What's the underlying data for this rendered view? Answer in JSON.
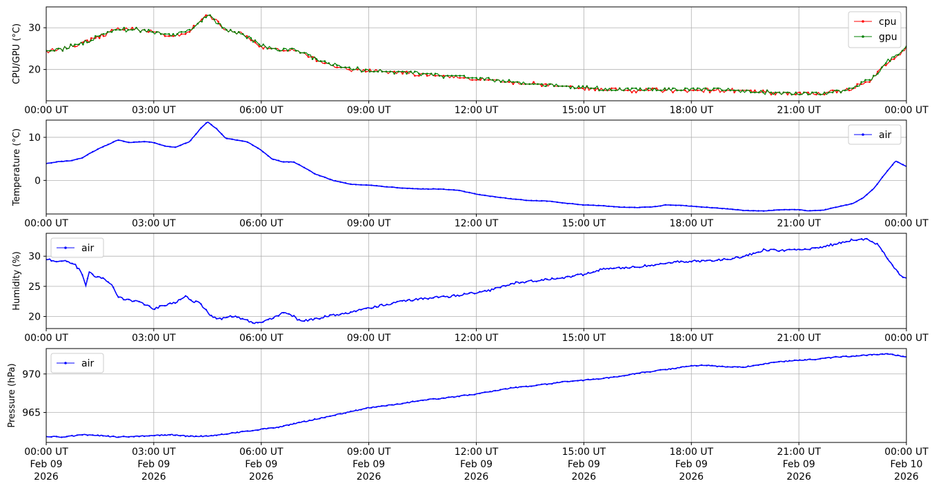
{
  "colors": {
    "cpu": "#ff0000",
    "gpu": "#008000",
    "air": "#0000ff",
    "grid": "#b0b0b0",
    "axes": "#000000"
  },
  "time_ticks": [
    "00:00 UT",
    "03:00 UT",
    "06:00 UT",
    "09:00 UT",
    "12:00 UT",
    "15:00 UT",
    "18:00 UT",
    "21:00 UT",
    "00:00 UT"
  ],
  "date_ticks": [
    [
      "Feb 09",
      "2026"
    ],
    [
      "Feb 09",
      "2026"
    ],
    [
      "Feb 09",
      "2026"
    ],
    [
      "Feb 09",
      "2026"
    ],
    [
      "Feb 09",
      "2026"
    ],
    [
      "Feb 09",
      "2026"
    ],
    [
      "Feb 09",
      "2026"
    ],
    [
      "Feb 09",
      "2026"
    ],
    [
      "Feb 10",
      "2026"
    ]
  ],
  "chart_data": [
    {
      "type": "line",
      "ylabel": "CPU/GPU (°C)",
      "x_unit": "hours since 00:00 UT Feb 09 2026",
      "xlim": [
        0,
        24
      ],
      "ylim": [
        12.5,
        35
      ],
      "yticks": [
        20,
        30
      ],
      "grid": true,
      "legend": "upper right",
      "series": [
        {
          "name": "cpu",
          "color_key": "cpu",
          "x": [
            0,
            0.5,
            1,
            1.5,
            2,
            2.5,
            3,
            3.5,
            4,
            4.5,
            4.75,
            5,
            5.5,
            6,
            6.5,
            7,
            7.5,
            8,
            8.5,
            9,
            9.5,
            10,
            10.5,
            11,
            11.5,
            12,
            12.5,
            13,
            13.5,
            14,
            14.5,
            15,
            15.5,
            16,
            16.5,
            17,
            17.5,
            18,
            18.5,
            19,
            19.5,
            20,
            20.5,
            21,
            21.5,
            22,
            22.5,
            23,
            23.5,
            24
          ],
          "values": [
            24.2,
            25,
            26.3,
            28,
            29.7,
            29.6,
            29,
            28,
            29,
            33.5,
            31.5,
            29.5,
            28.5,
            25.5,
            24.5,
            24.5,
            22.5,
            21,
            20,
            19.7,
            19.5,
            19.2,
            18.8,
            18.5,
            18.2,
            17.8,
            17.3,
            16.9,
            16.6,
            16.2,
            15.8,
            15.5,
            15.3,
            15.1,
            15,
            15,
            15,
            15,
            15,
            15,
            14.8,
            14.5,
            14.3,
            14.2,
            14.3,
            14.6,
            15.5,
            17.5,
            22,
            25
          ]
        },
        {
          "name": "gpu",
          "color_key": "gpu",
          "x": [
            0,
            0.5,
            1,
            1.5,
            2,
            2.5,
            3,
            3.5,
            4,
            4.5,
            4.75,
            5,
            5.5,
            6,
            6.5,
            7,
            7.5,
            8,
            8.5,
            9,
            9.5,
            10,
            10.5,
            11,
            11.5,
            12,
            12.5,
            13,
            13.5,
            14,
            14.5,
            15,
            15.5,
            16,
            16.5,
            17,
            17.5,
            18,
            18.5,
            19,
            19.5,
            20,
            20.5,
            21,
            21.5,
            22,
            22.5,
            23,
            23.5,
            24
          ],
          "values": [
            24.3,
            25.1,
            26.4,
            28.1,
            29.6,
            29.5,
            29,
            28.1,
            29.1,
            33.3,
            31.4,
            29.4,
            28.4,
            25.6,
            24.6,
            24.6,
            22.6,
            21.1,
            20.1,
            19.8,
            19.6,
            19.3,
            18.9,
            18.6,
            18.3,
            17.9,
            17.4,
            17,
            16.7,
            16.3,
            15.9,
            15.6,
            15.4,
            15.2,
            15.1,
            15.1,
            15.1,
            15.1,
            15.1,
            15.1,
            14.9,
            14.6,
            14.4,
            14.3,
            14.4,
            14.7,
            15.6,
            17.6,
            22.1,
            25.1
          ]
        }
      ]
    },
    {
      "type": "line",
      "ylabel": "Temperature (°C)",
      "x_unit": "hours since 00:00 UT Feb 09 2026",
      "xlim": [
        0,
        24
      ],
      "ylim": [
        -7.8,
        14
      ],
      "yticks": [
        0,
        10
      ],
      "grid": true,
      "legend": "upper right",
      "series": [
        {
          "name": "air",
          "color_key": "air",
          "x": [
            0,
            0.3,
            0.7,
            1,
            1.2,
            1.5,
            1.8,
            2,
            2.3,
            2.7,
            3,
            3.3,
            3.6,
            4,
            4.3,
            4.5,
            4.75,
            5,
            5.3,
            5.6,
            6,
            6.3,
            6.6,
            6.9,
            7.2,
            7.5,
            8,
            8.5,
            9,
            9.5,
            10,
            10.5,
            11,
            11.5,
            12,
            12.5,
            13,
            13.5,
            14,
            14.5,
            15,
            15.5,
            16,
            16.5,
            17,
            17.3,
            17.7,
            18,
            18.5,
            19,
            19.5,
            20,
            20.5,
            21,
            21.3,
            21.7,
            22,
            22.5,
            22.8,
            23.1,
            23.4,
            23.7,
            24
          ],
          "values": [
            3.9,
            4.3,
            4.6,
            5.2,
            6.2,
            7.5,
            8.6,
            9.4,
            8.8,
            9,
            8.8,
            8,
            7.7,
            9,
            12,
            13.6,
            12,
            9.8,
            9.4,
            9,
            7,
            5,
            4.3,
            4.3,
            3,
            1.5,
            0,
            -0.9,
            -1.1,
            -1.5,
            -1.8,
            -2,
            -2,
            -2.3,
            -3.2,
            -3.8,
            -4.3,
            -4.7,
            -4.8,
            -5.3,
            -5.7,
            -5.9,
            -6.2,
            -6.3,
            -6.1,
            -5.7,
            -5.8,
            -6,
            -6.3,
            -6.6,
            -7,
            -7.1,
            -6.8,
            -6.8,
            -7.1,
            -6.9,
            -6.3,
            -5.4,
            -4,
            -1.8,
            1.5,
            4.5,
            3.2
          ]
        }
      ]
    },
    {
      "type": "line",
      "ylabel": "Humidity (%)",
      "x_unit": "hours since 00:00 UT Feb 09 2026",
      "xlim": [
        0,
        24
      ],
      "ylim": [
        18,
        33.8
      ],
      "yticks": [
        20,
        25,
        30
      ],
      "grid": true,
      "legend": "upper left",
      "series": [
        {
          "name": "air",
          "color_key": "air",
          "x": [
            0,
            0.2,
            0.5,
            0.8,
            1,
            1.1,
            1.2,
            1.4,
            1.6,
            1.8,
            2,
            2.2,
            2.5,
            2.8,
            3,
            3.3,
            3.6,
            3.9,
            4.1,
            4.3,
            4.6,
            4.9,
            5.2,
            5.5,
            5.8,
            6.1,
            6.4,
            6.6,
            6.9,
            7.1,
            7.5,
            8,
            8.5,
            9,
            9.5,
            10,
            10.5,
            11,
            11.5,
            12,
            12.5,
            13,
            13.5,
            14,
            14.5,
            15,
            15.5,
            16,
            16.5,
            17,
            17.5,
            18,
            18.5,
            19,
            19.5,
            20,
            20.5,
            21,
            21.5,
            22,
            22.5,
            22.9,
            23.2,
            23.5,
            23.8,
            24
          ],
          "values": [
            29.5,
            29.3,
            29.2,
            28.6,
            27.2,
            25,
            27.3,
            26.5,
            26.3,
            25.5,
            23.3,
            22.8,
            22.5,
            22,
            21.3,
            21.8,
            22.3,
            23.3,
            22.5,
            22.2,
            20,
            19.6,
            20.1,
            19.6,
            18.9,
            19.2,
            19.9,
            20.6,
            20,
            19.2,
            19.6,
            20.2,
            20.7,
            21.4,
            22,
            22.6,
            23,
            23.2,
            23.5,
            24,
            24.5,
            25.5,
            25.8,
            26.2,
            26.5,
            27,
            27.8,
            28,
            28.3,
            28.5,
            29,
            29.2,
            29.2,
            29.5,
            30,
            31,
            31,
            31,
            31.3,
            32,
            32.7,
            32.8,
            32,
            29.5,
            27,
            26.3
          ]
        }
      ]
    },
    {
      "type": "line",
      "ylabel": "Pressure (hPa)",
      "x_unit": "hours since 00:00 UT Feb 09 2026",
      "xlim": [
        0,
        24
      ],
      "ylim": [
        961.1,
        973.3
      ],
      "yticks": [
        965,
        970
      ],
      "grid": true,
      "legend": "upper left",
      "series": [
        {
          "name": "air",
          "color_key": "air",
          "x": [
            0,
            0.5,
            1,
            1.5,
            2,
            2.5,
            3,
            3.5,
            4,
            4.5,
            5,
            5.5,
            6,
            6.5,
            7,
            7.5,
            8,
            8.5,
            9,
            9.5,
            10,
            10.5,
            11,
            11.5,
            12,
            12.5,
            13,
            13.5,
            14,
            14.5,
            15,
            15.5,
            16,
            16.5,
            17,
            17.5,
            18,
            18.5,
            19,
            19.5,
            20,
            20.5,
            21,
            21.5,
            22,
            22.5,
            23,
            23.5,
            24
          ],
          "values": [
            961.9,
            961.8,
            962.1,
            962.0,
            961.8,
            961.9,
            962.0,
            962.1,
            961.9,
            961.9,
            962.2,
            962.5,
            962.8,
            963.1,
            963.6,
            964.1,
            964.6,
            965.1,
            965.6,
            965.9,
            966.2,
            966.6,
            966.8,
            967.1,
            967.4,
            967.8,
            968.2,
            968.4,
            968.7,
            969.0,
            969.2,
            969.4,
            969.7,
            970.1,
            970.4,
            970.7,
            971.1,
            971.1,
            970.9,
            970.9,
            971.3,
            971.6,
            971.8,
            971.9,
            972.2,
            972.3,
            972.5,
            972.6,
            972.2
          ]
        }
      ]
    }
  ]
}
